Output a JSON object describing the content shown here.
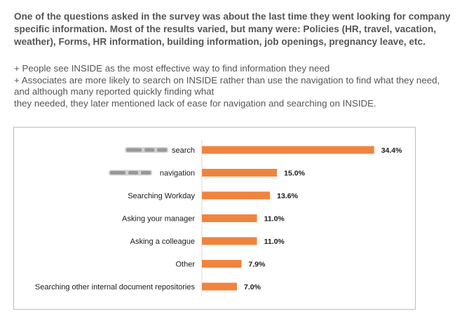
{
  "intro": {
    "text": "One of the questions asked in the survey was about the last time they went looking for company specific information. Most of the results varied, but many were: Policies (HR, travel, vacation, weather), Forms, HR information, building information, job openings, pregnancy leave, etc."
  },
  "bullets": {
    "line1": "+ People see INSIDE as the most effective way to find information they need",
    "line2": "+ Associates are more likely to search on INSIDE rather than use the navigation to find what they need,",
    "line3": "and although many reported quickly finding what",
    "line4": "they needed, they later mentioned lack of ease for navigation and searching on INSIDE."
  },
  "colors": {
    "bar": "#f0843e",
    "text": "#555555",
    "frame_border": "#bdbdbd"
  },
  "chart_data": {
    "type": "bar",
    "orientation": "horizontal",
    "categories": [
      "search",
      "navigation",
      "Searching Workday",
      "Asking your manager",
      "Asking a colleague",
      "Other",
      "Searching other internal document repositories"
    ],
    "values": [
      34.4,
      15.0,
      13.6,
      11.0,
      11.0,
      7.9,
      7.0
    ],
    "value_labels": [
      "34.4%",
      "15.0%",
      "13.6%",
      "11.0%",
      "11.0%",
      "7.9%",
      "7.0%"
    ],
    "redacted_prefix": [
      true,
      true,
      false,
      false,
      false,
      false,
      false
    ],
    "title": "",
    "xlabel": "",
    "ylabel": "",
    "xlim": [
      0,
      35
    ],
    "grid": false,
    "legend": "none"
  }
}
